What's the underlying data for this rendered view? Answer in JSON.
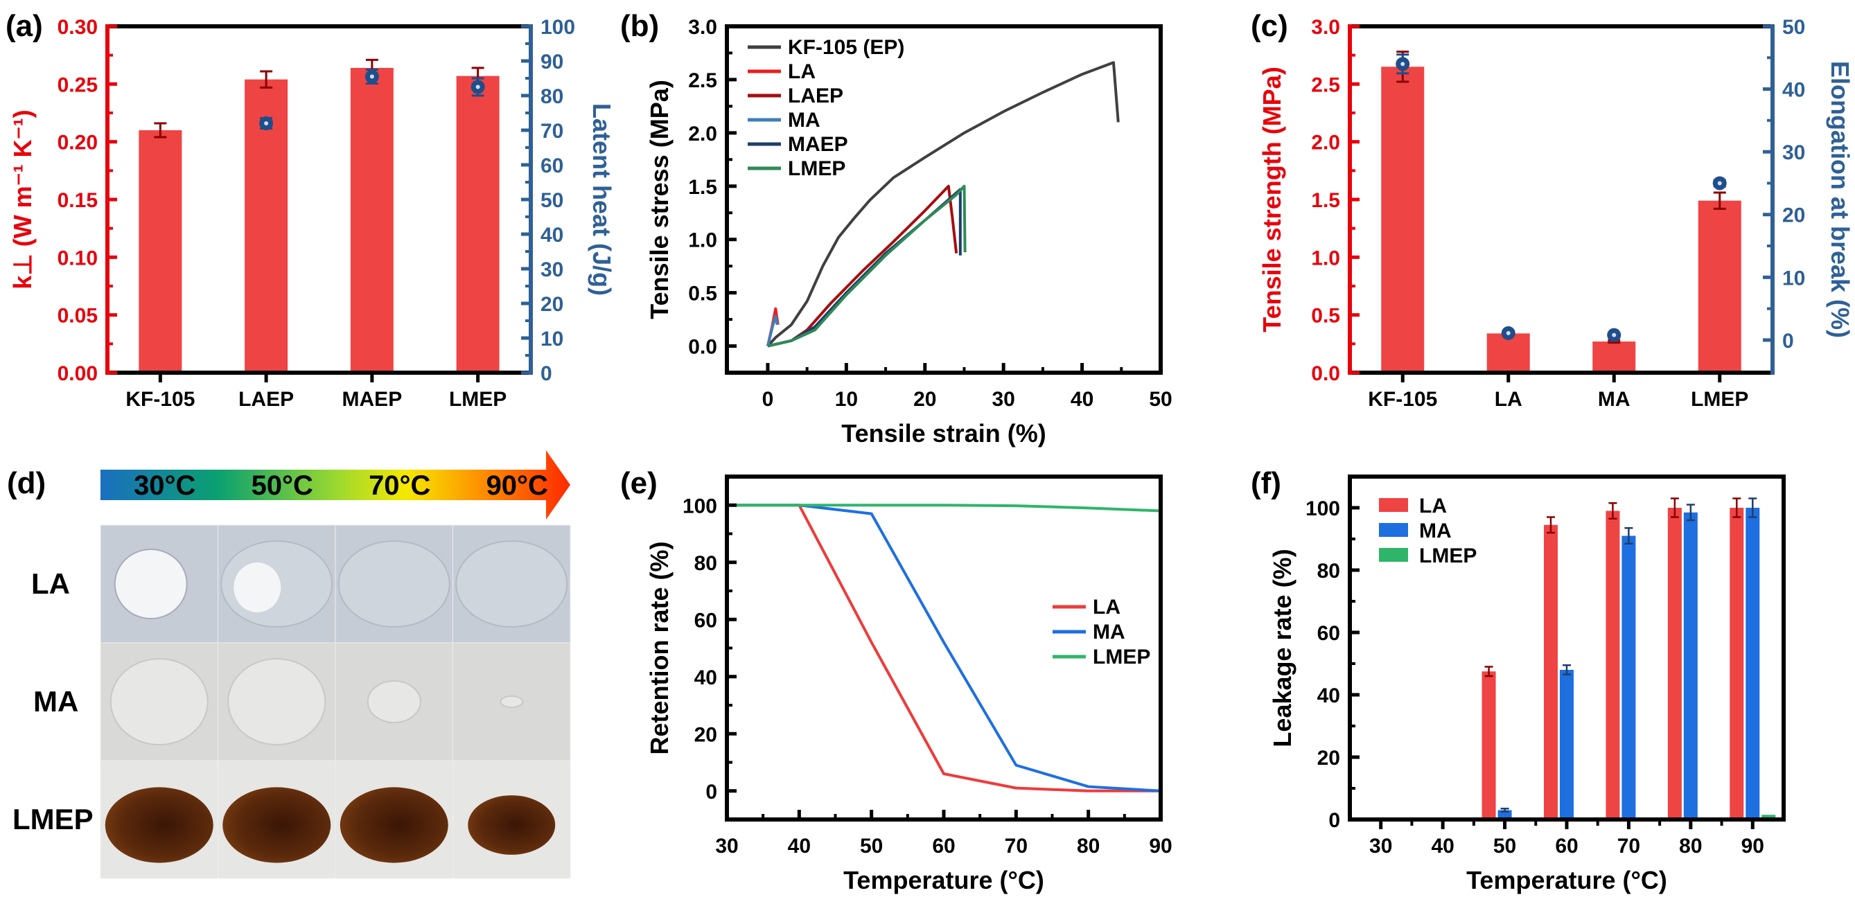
{
  "panel_labels": {
    "a": "(a)",
    "b": "(b)",
    "c": "(c)",
    "d": "(d)",
    "e": "(e)",
    "f": "(f)"
  },
  "colors": {
    "bar_red": "#ef4444",
    "axis_red": "#e8000b",
    "axis_blue": "#2f6096",
    "dot_blue": "#1f4e8a",
    "err_dark_red": "#8b0000",
    "black": "#000000"
  },
  "photo_panel": {
    "temperatures": [
      "30°C",
      "50°C",
      "70°C",
      "90°C"
    ],
    "rows": [
      "LA",
      "MA",
      "LMEP"
    ],
    "gradient": [
      "#1a6fc0",
      "#0aa070",
      "#9ad830",
      "#f5e800",
      "#ff8a00",
      "#ff2a00"
    ]
  },
  "chart_data": [
    {
      "id": "a",
      "type": "bar",
      "categories": [
        "KF-105",
        "LAEP",
        "MAEP",
        "LMEP"
      ],
      "ylabel": "k⊥ (W m⁻¹ K⁻¹)",
      "ylim": [
        0,
        0.3
      ],
      "yticks": [
        "0.00",
        "0.05",
        "0.10",
        "0.15",
        "0.20",
        "0.25",
        "0.30"
      ],
      "values": [
        0.21,
        0.254,
        0.264,
        0.257
      ],
      "errors": [
        0.006,
        0.007,
        0.007,
        0.007
      ],
      "y2label": "Latent heat (J/g)",
      "y2lim": [
        0,
        100
      ],
      "y2ticks": [
        "0",
        "10",
        "20",
        "30",
        "40",
        "50",
        "60",
        "70",
        "80",
        "90",
        "100"
      ],
      "y2_points": [
        null,
        72,
        85.5,
        82.5
      ],
      "y2_errors": [
        null,
        1.5,
        2,
        2.5
      ],
      "grid": false
    },
    {
      "id": "b",
      "type": "line",
      "xlabel": "Tensile strain (%)",
      "ylabel": "Tensile stress (MPa)",
      "xlim": [
        -5.2,
        50
      ],
      "ylim": [
        -0.25,
        3.0
      ],
      "xticks": [
        "0",
        "10",
        "20",
        "30",
        "40",
        "50"
      ],
      "yticks": [
        "0.0",
        "0.5",
        "1.0",
        "1.5",
        "2.0",
        "2.5",
        "3.0"
      ],
      "legend": "top-left",
      "grid": false,
      "series": [
        {
          "name": "KF-105 (EP)",
          "color": "#404040",
          "points": [
            [
              0,
              0
            ],
            [
              1,
              0.08
            ],
            [
              3,
              0.2
            ],
            [
              5,
              0.42
            ],
            [
              7,
              0.75
            ],
            [
              9,
              1.02
            ],
            [
              11,
              1.2
            ],
            [
              13,
              1.37
            ],
            [
              16,
              1.58
            ],
            [
              20,
              1.77
            ],
            [
              25,
              2.0
            ],
            [
              30,
              2.2
            ],
            [
              35,
              2.38
            ],
            [
              40,
              2.55
            ],
            [
              44,
              2.66
            ],
            [
              44.6,
              2.1
            ]
          ]
        },
        {
          "name": "LA",
          "color": "#ee1c1c",
          "points": [
            [
              0,
              0
            ],
            [
              0.6,
              0.2
            ],
            [
              1,
              0.35
            ],
            [
              1.3,
              0.2
            ]
          ]
        },
        {
          "name": "LAEP",
          "color": "#a50f0f",
          "points": [
            [
              0,
              0
            ],
            [
              3,
              0.05
            ],
            [
              5,
              0.15
            ],
            [
              8,
              0.4
            ],
            [
              12,
              0.7
            ],
            [
              16,
              0.98
            ],
            [
              20,
              1.27
            ],
            [
              23,
              1.5
            ],
            [
              23.5,
              1.2
            ],
            [
              24,
              0.87
            ]
          ]
        },
        {
          "name": "MA",
          "color": "#3f7fb8",
          "points": [
            [
              0,
              0
            ],
            [
              0.6,
              0.18
            ],
            [
              1,
              0.28
            ],
            [
              1.2,
              0.2
            ]
          ]
        },
        {
          "name": "MAEP",
          "color": "#1f3f6a",
          "points": [
            [
              0,
              0
            ],
            [
              3,
              0.05
            ],
            [
              6,
              0.18
            ],
            [
              10,
              0.5
            ],
            [
              15,
              0.87
            ],
            [
              20,
              1.18
            ],
            [
              24.5,
              1.47
            ],
            [
              24.5,
              0.85
            ]
          ]
        },
        {
          "name": "LMEP",
          "color": "#2e8b57",
          "points": [
            [
              0,
              0
            ],
            [
              3,
              0.05
            ],
            [
              6,
              0.15
            ],
            [
              10,
              0.48
            ],
            [
              15,
              0.85
            ],
            [
              20,
              1.18
            ],
            [
              24,
              1.42
            ],
            [
              25,
              1.5
            ],
            [
              25.1,
              0.88
            ]
          ]
        }
      ]
    },
    {
      "id": "c",
      "type": "bar",
      "categories": [
        "KF-105",
        "LA",
        "MA",
        "LMEP"
      ],
      "ylabel": "Tensile strength (MPa)",
      "ylim": [
        0,
        3.0
      ],
      "yticks": [
        "0.0",
        "0.5",
        "1.0",
        "1.5",
        "2.0",
        "2.5",
        "3.0"
      ],
      "values": [
        2.65,
        0.34,
        0.27,
        1.49
      ],
      "errors": [
        0.13,
        0.01,
        0.01,
        0.07
      ],
      "y2label": "Elongation at break (%)",
      "y2lim": [
        -5.2,
        50
      ],
      "y2ticks": [
        "0",
        "10",
        "20",
        "30",
        "40",
        "50"
      ],
      "y2_points": [
        44,
        1.1,
        0.8,
        25
      ],
      "y2_errors": [
        1.5,
        0.3,
        0.3,
        0.5
      ],
      "grid": false
    },
    {
      "id": "e",
      "type": "line",
      "xlabel": "Temperature (°C)",
      "ylabel": "Retention rate (%)",
      "xlim": [
        30,
        90
      ],
      "ylim": [
        -10,
        110
      ],
      "xticks": [
        "30",
        "40",
        "50",
        "60",
        "70",
        "80",
        "90"
      ],
      "yticks": [
        "0",
        "20",
        "40",
        "60",
        "80",
        "100"
      ],
      "legend": "right",
      "grid": false,
      "series": [
        {
          "name": "LA",
          "color": "#ee3b3b",
          "points": [
            [
              30,
              100
            ],
            [
              40,
              100
            ],
            [
              50,
              52
            ],
            [
              60,
              6
            ],
            [
              70,
              1
            ],
            [
              80,
              0
            ],
            [
              90,
              0
            ]
          ]
        },
        {
          "name": "MA",
          "color": "#1e6fe0",
          "points": [
            [
              30,
              100
            ],
            [
              40,
              100
            ],
            [
              50,
              97
            ],
            [
              60,
              52
            ],
            [
              70,
              9
            ],
            [
              80,
              1.5
            ],
            [
              90,
              0
            ]
          ]
        },
        {
          "name": "LMEP",
          "color": "#2fb56a",
          "points": [
            [
              30,
              100
            ],
            [
              60,
              100
            ],
            [
              70,
              99.8
            ],
            [
              80,
              99
            ],
            [
              90,
              98
            ]
          ]
        }
      ]
    },
    {
      "id": "f",
      "type": "bar",
      "categories": [
        "30",
        "40",
        "50",
        "60",
        "70",
        "80",
        "90"
      ],
      "xlabel": "Temperature (°C)",
      "ylabel": "Leakage rate (%)",
      "ylim": [
        0,
        110
      ],
      "yticks": [
        "0",
        "20",
        "40",
        "60",
        "80",
        "100"
      ],
      "legend": "top-left",
      "grid": false,
      "series": [
        {
          "name": "LA",
          "color": "#ef4444",
          "values": [
            0,
            0,
            47.5,
            94.5,
            99,
            100,
            100
          ],
          "errors": [
            0,
            0,
            1.5,
            2.5,
            2.5,
            3,
            3
          ]
        },
        {
          "name": "MA",
          "color": "#1e6fe0",
          "values": [
            0,
            0,
            3,
            48,
            91,
            98.5,
            100
          ],
          "errors": [
            0,
            0,
            0.5,
            1.5,
            2.5,
            2.5,
            3
          ]
        },
        {
          "name": "LMEP",
          "color": "#2fb56a",
          "values": [
            0,
            0,
            0,
            0,
            0,
            0.5,
            1.5
          ],
          "errors": [
            0,
            0,
            0,
            0,
            0,
            0,
            0
          ]
        }
      ]
    }
  ]
}
